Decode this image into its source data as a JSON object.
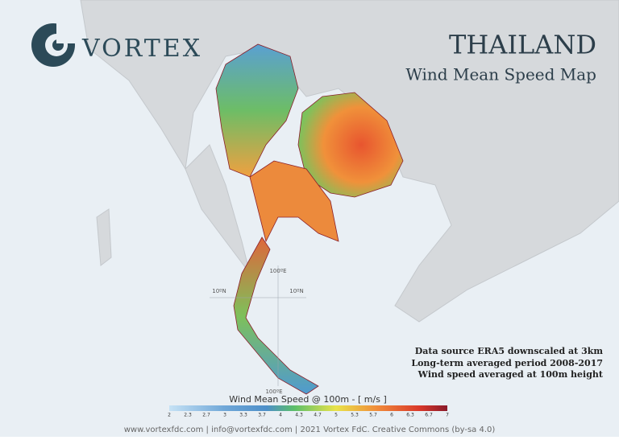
{
  "brand": {
    "name": "VORTEX"
  },
  "header": {
    "title": "THAILAND",
    "subtitle": "Wind Mean Speed Map"
  },
  "notes": [
    "Data source ERA5 downscaled at 3km",
    "Long-term averaged period 2008-2017",
    "Wind speed averaged at 100m height"
  ],
  "grid_labels": {
    "lon_top": "100ºE",
    "lat_left": "10ºN",
    "lat_right": "10ºN",
    "lon_bottom": "100ºE"
  },
  "legend": {
    "title": "Wind Mean Speed @ 100m - [ m/s ]",
    "ticks": [
      "2",
      "2.3",
      "2.7",
      "3",
      "3.3",
      "3.7",
      "4",
      "4.3",
      "4.7",
      "5",
      "5.3",
      "5.7",
      "6",
      "6.3",
      "6.7",
      "7"
    ]
  },
  "footer": "www.vortexfdc.com | info@vortexfdc.com | 2021 Vortex FdC. Creative Commons (by-sa 4.0)"
}
